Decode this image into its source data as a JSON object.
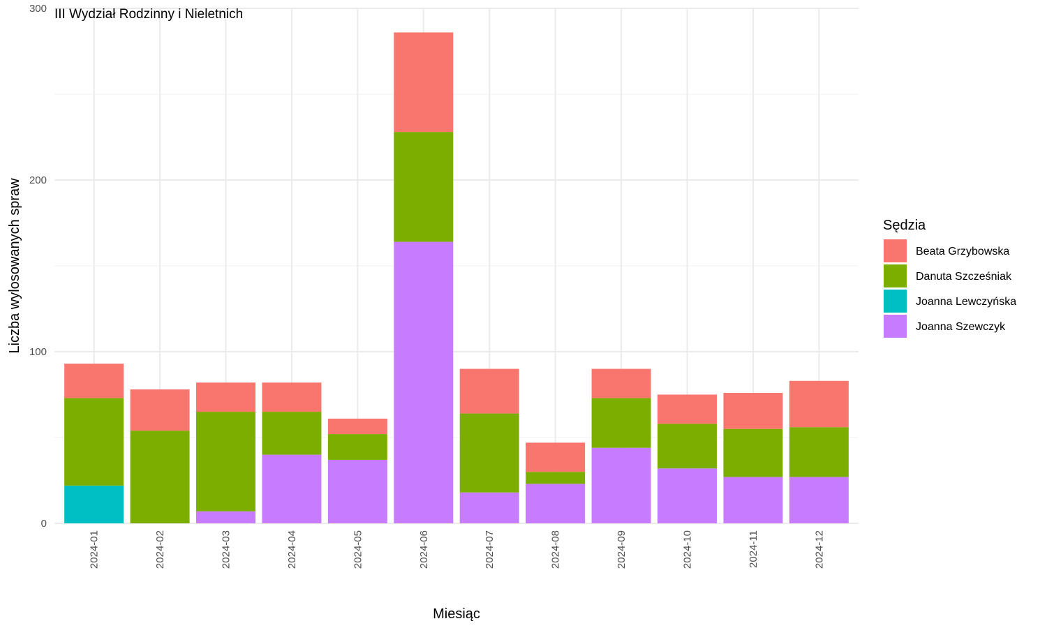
{
  "chart_data": {
    "type": "bar",
    "stacked": true,
    "title": "III Wydział Rodzinny i Nieletnich",
    "xlabel": "Miesiąc",
    "ylabel": "Liczba wylosowanych spraw",
    "ylim": [
      0,
      300
    ],
    "yticks": [
      0,
      100,
      200,
      300
    ],
    "grid": true,
    "legend_title": "Sędzia",
    "legend_position": "right",
    "categories": [
      "2024-01",
      "2024-02",
      "2024-03",
      "2024-04",
      "2024-05",
      "2024-06",
      "2024-07",
      "2024-08",
      "2024-09",
      "2024-10",
      "2024-11",
      "2024-12"
    ],
    "series": [
      {
        "name": "Beata Grzybowska",
        "color": "#F8766D",
        "values": [
          20,
          24,
          17,
          17,
          9,
          58,
          26,
          17,
          17,
          17,
          21,
          27
        ]
      },
      {
        "name": "Danuta Szcześniak",
        "color": "#7CAE00",
        "values": [
          51,
          54,
          58,
          25,
          15,
          64,
          46,
          7,
          29,
          26,
          28,
          29
        ]
      },
      {
        "name": "Joanna Lewczyńska",
        "color": "#00BFC4",
        "values": [
          22,
          0,
          0,
          0,
          0,
          0,
          0,
          0,
          0,
          0,
          0,
          0
        ]
      },
      {
        "name": "Joanna Szewczyk",
        "color": "#C77CFF",
        "values": [
          0,
          0,
          7,
          40,
          37,
          164,
          18,
          23,
          44,
          32,
          27,
          27
        ]
      }
    ],
    "stack_order_bottom_to_top": [
      "Joanna Lewczyńska",
      "Joanna Szewczyk",
      "Danuta Szcześniak",
      "Beata Grzybowska"
    ]
  }
}
